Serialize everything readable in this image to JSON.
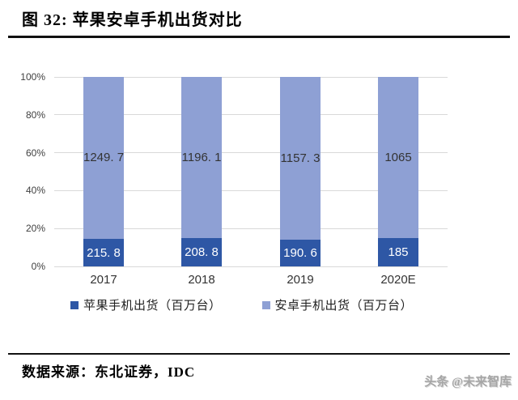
{
  "header": {
    "title": "图 32: 苹果安卓手机出货对比"
  },
  "footer": {
    "source": "数据来源：东北证券，IDC",
    "watermark": "头条 @未来智库"
  },
  "chart_data": {
    "type": "bar",
    "subtype": "stacked-100-percent",
    "title": "苹果安卓手机出货对比",
    "categories": [
      "2017",
      "2018",
      "2019",
      "2020E"
    ],
    "series": [
      {
        "name": "苹果手机出货（百万台）",
        "values": [
          215.8,
          208.8,
          190.6,
          185
        ],
        "labels": [
          "215. 8",
          "208. 8",
          "190. 6",
          "185"
        ],
        "color": "#2E57A5",
        "label_color": "#ffffff"
      },
      {
        "name": "安卓手机出货（百万台）",
        "values": [
          1249.7,
          1196.1,
          1157.3,
          1065
        ],
        "labels": [
          "1249. 7",
          "1196. 1",
          "1157. 3",
          "1065"
        ],
        "color": "#8EA0D4",
        "label_color": "#333333"
      }
    ],
    "yticks": [
      "0%",
      "20%",
      "40%",
      "60%",
      "80%",
      "100%"
    ],
    "ylim": [
      0,
      100
    ],
    "grid": true,
    "gridline_color": "#d9d9d9",
    "legend_position": "bottom",
    "xlabel": "",
    "ylabel": ""
  }
}
